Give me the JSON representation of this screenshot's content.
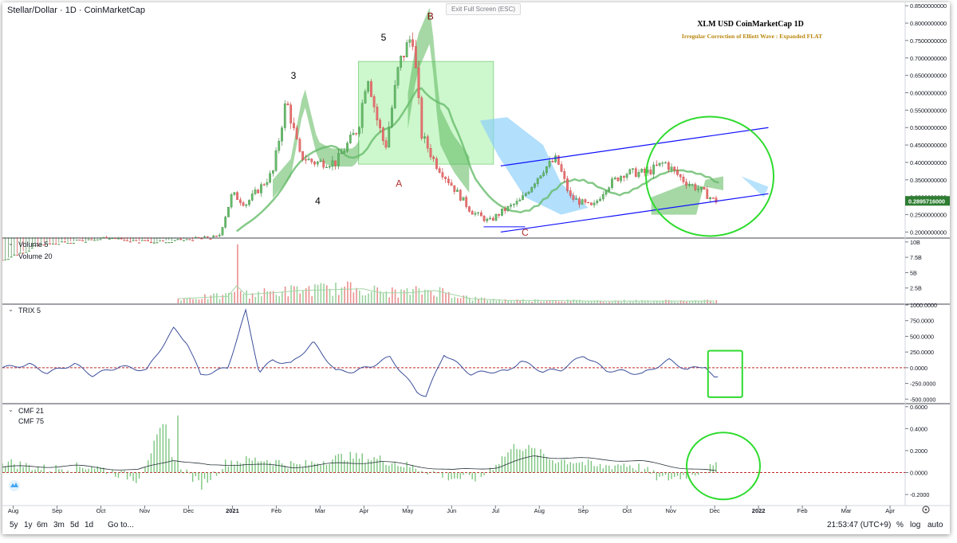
{
  "header": {
    "symbol": "Stellar/Dollar",
    "interval": "1D",
    "source": "CoinMarketCap",
    "exit_button": "Exit Full Screen (ESC)"
  },
  "annotation": {
    "title": "XLM USD CoinMarketCap 1D",
    "subtitle": "Irregular Correction of Elliott Wave : Expanded FLAT"
  },
  "panels": {
    "volume": {
      "legend_1": "Volume 5",
      "legend_2": "Volume 20"
    },
    "trix": {
      "legend_1": "TRIX 5"
    },
    "cmf": {
      "legend_1": "CMF 21",
      "legend_2": "CMF 75"
    }
  },
  "bottom_bar": {
    "ranges": [
      "5y",
      "1y",
      "6m",
      "3m",
      "5d",
      "1d"
    ],
    "goto": "Go to...",
    "clock": "21:53:47 (UTC+9)",
    "percent": "%",
    "log": "log",
    "auto": "auto"
  },
  "colors": {
    "up": "#26a69a",
    "down": "#ef5350",
    "box": "#90ee90",
    "channel": "#1010ff",
    "circle": "#2edb2e",
    "trix_line": "#3d4f9b",
    "zero_line": "#c62828",
    "price_tag": "#2e7d32"
  },
  "chart_data": [
    {
      "type": "candlestick",
      "title": "Stellar/Dollar · 1D · CoinMarketCap",
      "y_axis_ticks": [
        "0.2000000000",
        "0.2500000000",
        "0.3000000000",
        "0.3500000000",
        "0.4000000000",
        "0.4500000000",
        "0.5000000000",
        "0.5500000000",
        "0.6000000000",
        "0.6500000000",
        "0.7000000000",
        "0.7500000000",
        "0.8000000000",
        "0.8500000000"
      ],
      "ylim": [
        0.185,
        0.855
      ],
      "x_axis_ticks": [
        "Aug",
        "Sep",
        "Oct",
        "Nov",
        "Dec",
        "2021",
        "Feb",
        "Mar",
        "Apr",
        "May",
        "Jun",
        "Jul",
        "Aug",
        "Sep",
        "Oct",
        "Nov",
        "Dec",
        "2022",
        "Feb",
        "Mar",
        "Apr"
      ],
      "last_price": "0.2895716000",
      "wave_labels": [
        "3",
        "4",
        "5",
        "A",
        "B",
        "C"
      ],
      "series": [
        {
          "x": 0.0,
          "close": 0.12
        },
        {
          "x": 0.04,
          "close": 0.16
        },
        {
          "x": 0.11,
          "close": 0.18
        },
        {
          "x": 0.18,
          "close": 0.17
        },
        {
          "x": 0.22,
          "close": 0.18
        },
        {
          "x": 0.24,
          "close": 0.185
        },
        {
          "x": 0.255,
          "close": 0.31
        },
        {
          "x": 0.27,
          "close": 0.28
        },
        {
          "x": 0.3,
          "close": 0.37
        },
        {
          "x": 0.315,
          "close": 0.58
        },
        {
          "x": 0.33,
          "close": 0.42
        },
        {
          "x": 0.345,
          "close": 0.4
        },
        {
          "x": 0.37,
          "close": 0.4
        },
        {
          "x": 0.395,
          "close": 0.5
        },
        {
          "x": 0.405,
          "close": 0.66
        },
        {
          "x": 0.415,
          "close": 0.53
        },
        {
          "x": 0.425,
          "close": 0.44
        },
        {
          "x": 0.44,
          "close": 0.68
        },
        {
          "x": 0.455,
          "close": 0.77
        },
        {
          "x": 0.465,
          "close": 0.48
        },
        {
          "x": 0.48,
          "close": 0.4
        },
        {
          "x": 0.5,
          "close": 0.33
        },
        {
          "x": 0.52,
          "close": 0.26
        },
        {
          "x": 0.54,
          "close": 0.23
        },
        {
          "x": 0.555,
          "close": 0.26
        },
        {
          "x": 0.575,
          "close": 0.29
        },
        {
          "x": 0.6,
          "close": 0.38
        },
        {
          "x": 0.615,
          "close": 0.41
        },
        {
          "x": 0.63,
          "close": 0.3
        },
        {
          "x": 0.655,
          "close": 0.27
        },
        {
          "x": 0.67,
          "close": 0.33
        },
        {
          "x": 0.69,
          "close": 0.37
        },
        {
          "x": 0.715,
          "close": 0.37
        },
        {
          "x": 0.735,
          "close": 0.4
        },
        {
          "x": 0.755,
          "close": 0.35
        },
        {
          "x": 0.775,
          "close": 0.32
        },
        {
          "x": 0.79,
          "close": 0.29
        }
      ]
    },
    {
      "type": "bar",
      "title": "Volume",
      "y_axis_ticks": [
        "10B",
        "7.5B",
        "5B",
        "2.5B"
      ],
      "ylim": [
        0,
        10.5
      ]
    },
    {
      "type": "line",
      "title": "TRIX 5",
      "y_axis_ticks": [
        "1000.0000",
        "750.0000",
        "500.0000",
        "250.0000",
        "0.0000",
        "-250.0000",
        "-500.0000"
      ],
      "ylim": [
        -560,
        1000
      ],
      "series": [
        {
          "name": "TRIX 5",
          "x": [
            0.0,
            0.03,
            0.05,
            0.08,
            0.1,
            0.13,
            0.16,
            0.19,
            0.205,
            0.22,
            0.25,
            0.27,
            0.285,
            0.3,
            0.32,
            0.345,
            0.37,
            0.39,
            0.41,
            0.43,
            0.46,
            0.47,
            0.49,
            0.52,
            0.54,
            0.56,
            0.575,
            0.6,
            0.62,
            0.645,
            0.67,
            0.69,
            0.71,
            0.74,
            0.76,
            0.78,
            0.79
          ],
          "y": [
            0,
            50,
            -80,
            60,
            -120,
            20,
            -40,
            620,
            400,
            -120,
            0,
            900,
            -70,
            120,
            60,
            400,
            -50,
            -60,
            30,
            170,
            -380,
            -450,
            220,
            -100,
            -60,
            -60,
            110,
            -60,
            -30,
            200,
            -40,
            -60,
            -100,
            120,
            -30,
            30,
            -170
          ]
        }
      ]
    },
    {
      "type": "bar",
      "title": "CMF 21",
      "y_axis_ticks": [
        "0.6000",
        "0.4000",
        "0.2000",
        "0.0000",
        "-0.2000"
      ],
      "ylim": [
        -0.25,
        0.62
      ],
      "series": [
        {
          "name": "CMF 21",
          "x": [
            0.0,
            0.05,
            0.1,
            0.15,
            0.18,
            0.19,
            0.22,
            0.25,
            0.29,
            0.33,
            0.38,
            0.42,
            0.47,
            0.5,
            0.53,
            0.57,
            0.59,
            0.61,
            0.64,
            0.66,
            0.69,
            0.71,
            0.73,
            0.75,
            0.79
          ],
          "y": [
            0.1,
            0.03,
            0.06,
            -0.06,
            0.45,
            0.12,
            -0.12,
            0.1,
            0.12,
            0.06,
            0.15,
            0.12,
            0.02,
            -0.05,
            -0.05,
            0.25,
            0.2,
            0.12,
            0.1,
            0.05,
            0.08,
            0.04,
            -0.06,
            -0.04,
            0.05
          ]
        },
        {
          "name": "CMF 75",
          "x": [
            0.0,
            0.08,
            0.15,
            0.19,
            0.23,
            0.27,
            0.32,
            0.37,
            0.42,
            0.46,
            0.5,
            0.55,
            0.59,
            0.63,
            0.67,
            0.71,
            0.75,
            0.79
          ],
          "y": [
            0.05,
            0.06,
            0.02,
            0.12,
            0.06,
            0.08,
            0.05,
            0.08,
            0.1,
            0.06,
            0.02,
            0.05,
            0.15,
            0.13,
            0.12,
            0.1,
            0.05,
            0.01
          ]
        }
      ]
    }
  ]
}
